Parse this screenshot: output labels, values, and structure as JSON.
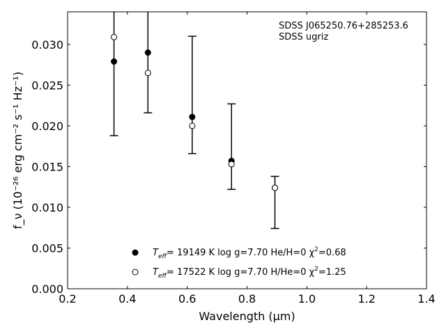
{
  "chart_data": {
    "type": "scatter",
    "title": "",
    "xlabel": "Wavelength (μm)",
    "ylabel": "f_ν (10⁻²⁶ erg cm⁻² s⁻¹ Hz⁻¹)",
    "xlim": [
      0.2,
      1.4
    ],
    "ylim": [
      0.0,
      0.034
    ],
    "x_ticks": [
      0.2,
      0.4,
      0.6,
      0.8,
      1.0,
      1.2,
      1.4
    ],
    "x_tick_labels": [
      "0.2",
      "0.4",
      "0.6",
      "0.8",
      "1.0",
      "1.2",
      "1.4"
    ],
    "y_ticks": [
      0.0,
      0.005,
      0.01,
      0.015,
      0.02,
      0.025,
      0.03
    ],
    "y_tick_labels": [
      "0.000",
      "0.005",
      "0.010",
      "0.015",
      "0.020",
      "0.025",
      "0.030"
    ],
    "grid": false,
    "legend_position": "bottom-center",
    "annotations": [
      "SDSS J065250.76+285253.6",
      "SDSS ugriz"
    ],
    "observed": {
      "x": [
        0.3551,
        0.4686,
        0.6166,
        0.748,
        0.8932
      ],
      "y": [
        0.0279,
        0.029,
        0.0211,
        0.0157,
        0.0124
      ],
      "err_low": [
        0.0188,
        0.0216,
        0.0166,
        0.0122,
        0.0074
      ],
      "err_high": [
        0.0345,
        0.0345,
        0.031,
        0.0227,
        0.0138
      ]
    },
    "series": [
      {
        "name": "T_eff= 19149 K log g=7.70 He/H=0 χ²=0.68",
        "label_parts": [
          "= 19149 K  log g=7.70  He/H=0  χ",
          "=0.68"
        ],
        "marker": "filled-circle",
        "x": [
          0.3551,
          0.4686,
          0.6166,
          0.748,
          0.8932
        ],
        "y": [
          0.0279,
          0.029,
          0.0211,
          0.0157,
          0.0124
        ]
      },
      {
        "name": "T_eff= 17522 K log g=7.70 H/He=0 χ²=1.25",
        "label_parts": [
          "= 17522 K  log g=7.70  H/He=0  χ",
          "=1.25"
        ],
        "marker": "open-circle",
        "x": [
          0.3551,
          0.4686,
          0.6166,
          0.748,
          0.8932
        ],
        "y": [
          0.0309,
          0.0265,
          0.02,
          0.0153,
          0.0124
        ]
      }
    ]
  }
}
